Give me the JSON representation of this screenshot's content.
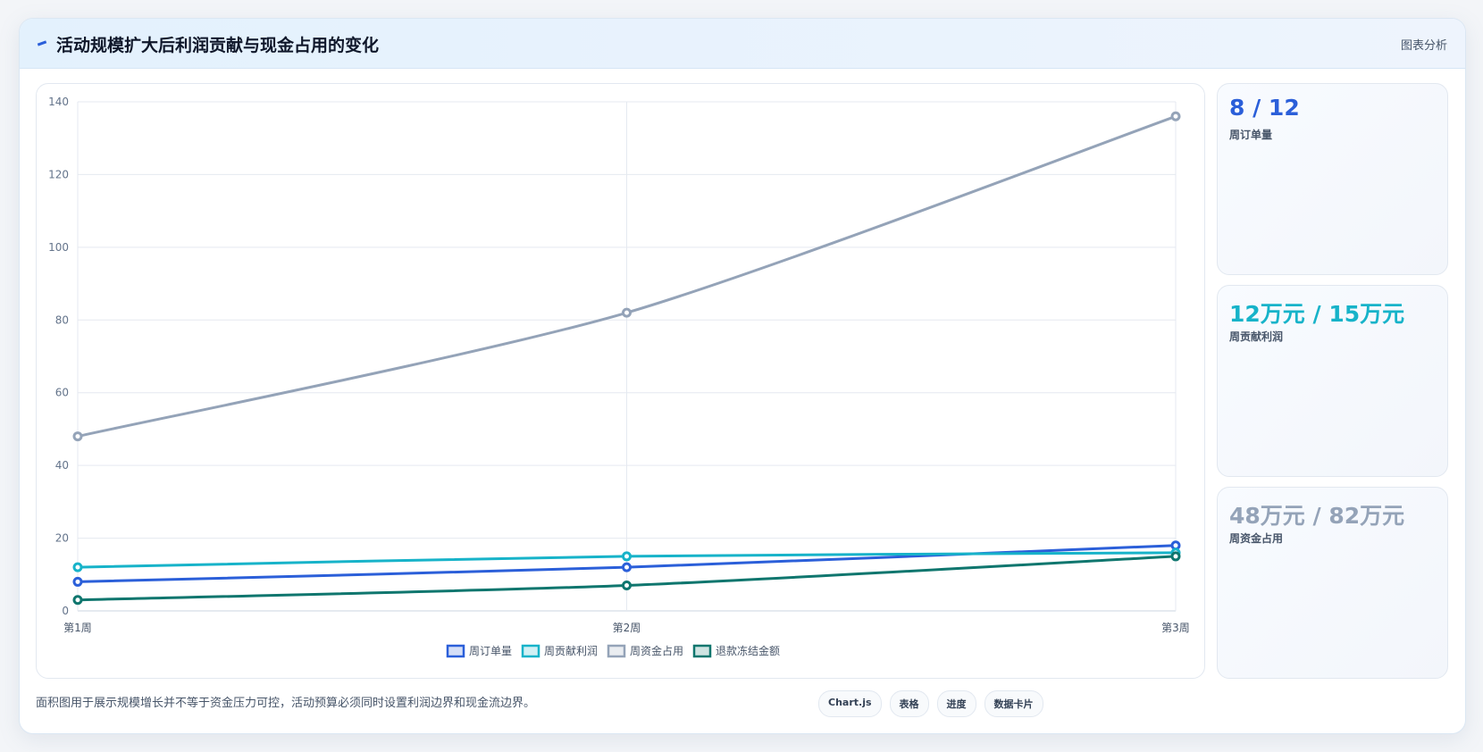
{
  "header": {
    "title": "活动规模扩大后利润贡献与现金占用的变化",
    "action": "图表分析"
  },
  "chart_data": {
    "type": "line",
    "categories": [
      "第1周",
      "第2周",
      "第3周"
    ],
    "series": [
      {
        "name": "周订单量",
        "color": "#2b5fd9",
        "values": [
          8,
          12,
          18
        ]
      },
      {
        "name": "周贡献利润",
        "color": "#17b3c9",
        "values": [
          12,
          15,
          16
        ]
      },
      {
        "name": "周资金占用",
        "color": "#94a3b8",
        "values": [
          48,
          82,
          136
        ]
      },
      {
        "name": "退款冻结金额",
        "color": "#0f766e",
        "values": [
          3,
          7,
          15
        ]
      }
    ],
    "ylim": [
      0,
      140
    ],
    "yticks": [
      0,
      20,
      40,
      60,
      80,
      100,
      120,
      140
    ],
    "grid": true,
    "legend": "bottom"
  },
  "cards": [
    {
      "value": "8 / 12",
      "label": "周订单量",
      "color": "#2b5fd9"
    },
    {
      "value": "12万元 / 15万元",
      "label": "周贡献利润",
      "color": "#17b3c9"
    },
    {
      "value": "48万元 / 82万元",
      "label": "周资金占用",
      "color": "#94a3b8"
    }
  ],
  "footer": {
    "note": "面积图用于展示规模增长并不等于资金压力可控，活动预算必须同时设置利润边界和现金流边界。",
    "buttons": [
      "Chart.js",
      "表格",
      "进度",
      "数据卡片"
    ]
  }
}
